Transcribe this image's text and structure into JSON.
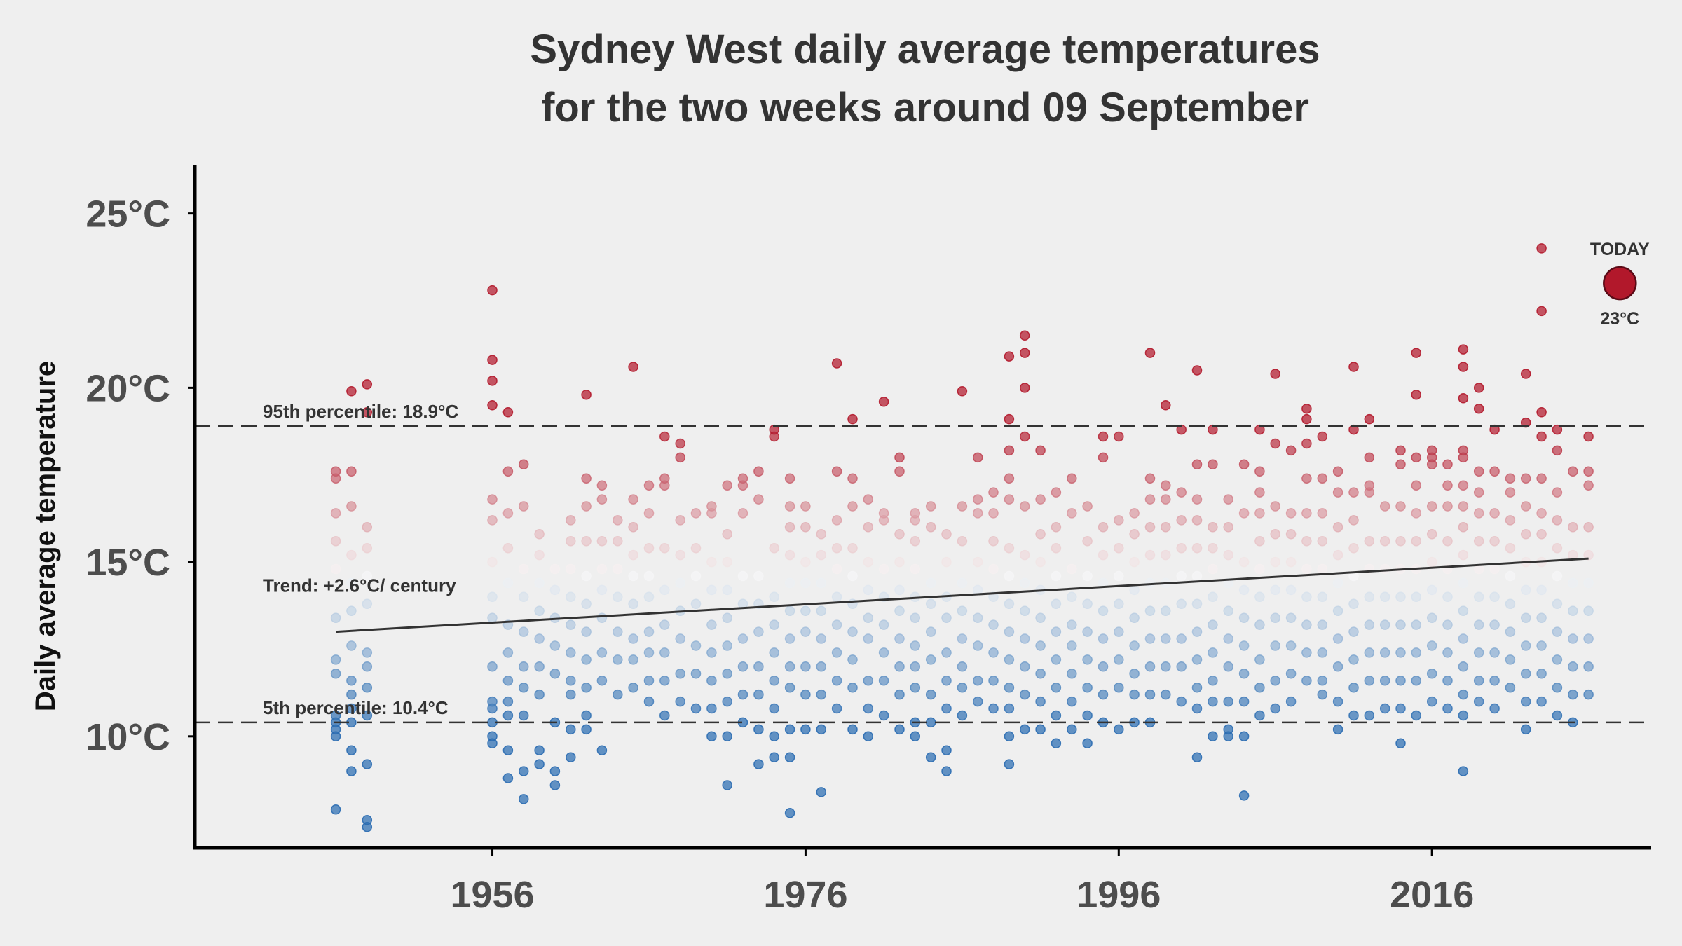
{
  "chart_data": {
    "type": "scatter",
    "title": [
      "Sydney West daily average temperatures",
      "for the two weeks around 09 September"
    ],
    "ylabel": "Daily average temperature",
    "xlabel": "",
    "xlim": [
      1937,
      2030
    ],
    "ylim": [
      6.8,
      26.4
    ],
    "xticks": [
      1956,
      1976,
      1996,
      2016
    ],
    "xtick_labels": [
      "1956",
      "1976",
      "1996",
      "2016"
    ],
    "yticks": [
      10,
      15,
      20,
      25
    ],
    "ytick_labels": [
      "10°C",
      "15°C",
      "20°C",
      "25°C"
    ],
    "grid": false,
    "colormap": {
      "cold": "#2a6cb1",
      "mid": "#f7f7f7",
      "hot": "#b2182b"
    },
    "percentiles": [
      {
        "name": "95th",
        "value": 18.9,
        "label": "95th percentile: 18.9°C"
      },
      {
        "name": "5th",
        "value": 10.4,
        "label": "5th percentile: 10.4°C"
      }
    ],
    "trend": {
      "label": "Trend: +2.6°C/ century",
      "start": [
        1946,
        13.0
      ],
      "end": [
        2026,
        15.1
      ]
    },
    "today": {
      "year": 2028,
      "value": 23,
      "label_top": "TODAY",
      "label_bottom": "23°C",
      "color": "#b2182b"
    },
    "years": [
      1946,
      1947,
      1948,
      1956,
      1957,
      1958,
      1959,
      1960,
      1961,
      1962,
      1963,
      1964,
      1965,
      1966,
      1967,
      1968,
      1969,
      1970,
      1971,
      1972,
      1973,
      1974,
      1975,
      1976,
      1977,
      1978,
      1979,
      1980,
      1981,
      1982,
      1983,
      1984,
      1985,
      1986,
      1987,
      1988,
      1989,
      1990,
      1991,
      1992,
      1993,
      1994,
      1995,
      1996,
      1997,
      1998,
      1999,
      2000,
      2001,
      2002,
      2003,
      2004,
      2005,
      2006,
      2007,
      2008,
      2009,
      2010,
      2011,
      2012,
      2013,
      2014,
      2015,
      2016,
      2017,
      2018,
      2019,
      2020,
      2021,
      2022,
      2023,
      2024,
      2025,
      2026
    ],
    "values": [
      [
        7.9,
        10.0,
        10.2,
        10.4,
        10.6,
        11.8,
        12.2,
        13.4,
        14.8,
        15.6,
        16.4,
        17.4,
        17.6
      ],
      [
        9.0,
        9.6,
        10.4,
        10.8,
        11.2,
        11.6,
        12.6,
        13.6,
        14.4,
        15.2,
        16.6,
        17.6,
        19.9
      ],
      [
        7.4,
        7.6,
        9.2,
        10.6,
        11.4,
        12.0,
        12.4,
        13.8,
        14.6,
        15.4,
        16.0,
        19.3,
        20.1
      ],
      [
        9.8,
        10.0,
        10.4,
        10.8,
        11.0,
        12.0,
        13.4,
        14.0,
        15.0,
        16.2,
        16.8,
        19.5,
        20.2,
        20.8,
        22.8
      ],
      [
        8.8,
        9.6,
        10.6,
        11.0,
        11.6,
        12.4,
        13.2,
        14.4,
        15.4,
        16.4,
        17.6,
        19.3
      ],
      [
        8.2,
        9.0,
        10.6,
        11.4,
        12.0,
        13.0,
        14.0,
        14.8,
        16.6,
        17.8
      ],
      [
        9.2,
        9.6,
        11.2,
        12.0,
        12.8,
        13.6,
        14.4,
        15.2,
        15.8
      ],
      [
        8.6,
        9.0,
        10.4,
        11.8,
        12.6,
        13.4,
        14.2,
        14.8
      ],
      [
        9.4,
        10.2,
        11.2,
        11.6,
        12.4,
        13.2,
        14.0,
        14.8,
        15.6,
        16.2
      ],
      [
        10.2,
        10.6,
        11.4,
        12.2,
        13.0,
        13.8,
        14.6,
        15.6,
        16.6,
        17.4,
        19.8
      ],
      [
        9.6,
        11.6,
        12.4,
        13.4,
        14.2,
        14.8,
        15.6,
        16.8,
        17.2
      ],
      [
        11.2,
        12.2,
        13.0,
        14.0,
        14.8,
        15.6,
        16.2
      ],
      [
        11.4,
        12.2,
        12.8,
        13.8,
        14.6,
        15.2,
        16.0,
        16.8,
        20.6
      ],
      [
        11.0,
        11.6,
        12.4,
        13.0,
        14.0,
        14.6,
        15.4,
        16.4,
        17.2
      ],
      [
        10.6,
        11.6,
        12.4,
        13.2,
        14.2,
        15.4,
        17.2,
        17.4,
        18.6
      ],
      [
        11.0,
        11.8,
        12.8,
        13.6,
        14.4,
        15.2,
        16.2,
        18.0,
        18.4
      ],
      [
        10.8,
        11.8,
        12.6,
        13.8,
        14.6,
        15.4,
        16.4
      ],
      [
        10.0,
        10.8,
        11.6,
        12.4,
        13.2,
        14.2,
        15.0,
        16.4,
        16.6
      ],
      [
        8.6,
        10.0,
        11.0,
        11.8,
        12.6,
        13.4,
        14.2,
        15.0,
        15.8,
        17.2
      ],
      [
        10.4,
        11.2,
        12.0,
        12.8,
        13.8,
        14.6,
        16.4,
        17.2,
        17.4
      ],
      [
        9.2,
        10.2,
        11.2,
        12.0,
        13.0,
        13.8,
        14.6,
        16.8,
        17.6
      ],
      [
        9.4,
        10.0,
        10.8,
        11.6,
        12.4,
        13.2,
        14.0,
        15.4,
        18.6,
        18.8
      ],
      [
        7.8,
        9.4,
        10.2,
        11.4,
        12.0,
        12.8,
        13.6,
        14.4,
        15.2,
        16.0,
        16.6,
        17.4
      ],
      [
        10.2,
        11.2,
        12.0,
        13.0,
        13.6,
        14.4,
        15.0,
        16.0,
        16.6
      ],
      [
        8.4,
        10.2,
        11.2,
        12.0,
        12.8,
        13.6,
        14.4,
        15.2,
        15.8
      ],
      [
        10.8,
        11.6,
        12.4,
        13.2,
        14.0,
        14.8,
        15.4,
        16.2,
        17.6,
        20.7
      ],
      [
        10.2,
        11.4,
        12.2,
        13.0,
        13.8,
        14.6,
        15.4,
        16.6,
        17.4,
        19.1
      ],
      [
        10.0,
        10.8,
        11.6,
        12.8,
        13.4,
        14.2,
        15.0,
        16.0,
        16.8
      ],
      [
        10.6,
        11.6,
        12.4,
        13.2,
        14.0,
        14.8,
        16.2,
        16.4,
        19.6
      ],
      [
        10.2,
        11.2,
        12.0,
        12.8,
        13.6,
        14.2,
        15.0,
        15.8,
        17.6,
        18.0
      ],
      [
        10.0,
        10.4,
        11.4,
        12.0,
        12.6,
        13.4,
        14.0,
        14.8,
        15.6,
        16.2,
        16.4
      ],
      [
        9.4,
        10.4,
        11.2,
        12.2,
        13.0,
        13.8,
        14.4,
        16.0,
        16.6
      ],
      [
        9.0,
        9.6,
        10.8,
        11.6,
        12.4,
        13.4,
        14.0,
        15.0,
        15.8
      ],
      [
        10.6,
        11.4,
        12.0,
        12.8,
        13.6,
        14.4,
        15.6,
        16.6,
        19.9
      ],
      [
        11.0,
        11.6,
        12.6,
        13.4,
        14.2,
        15.0,
        16.4,
        16.8,
        18.0
      ],
      [
        10.8,
        11.6,
        12.4,
        13.2,
        14.0,
        14.8,
        15.6,
        16.4,
        17.0
      ],
      [
        9.2,
        10.0,
        10.8,
        11.4,
        12.2,
        13.0,
        13.8,
        14.6,
        15.4,
        16.8,
        17.4,
        18.2,
        19.1,
        20.9
      ],
      [
        10.2,
        11.2,
        12.0,
        12.8,
        13.6,
        14.4,
        15.2,
        16.6,
        18.6,
        20.0,
        21.0,
        21.5
      ],
      [
        10.2,
        11.0,
        11.8,
        12.6,
        13.4,
        14.2,
        15.0,
        15.8,
        16.8,
        18.2
      ],
      [
        9.8,
        10.6,
        11.4,
        12.2,
        13.0,
        13.8,
        14.6,
        15.4,
        16.0,
        17.0
      ],
      [
        10.2,
        11.0,
        11.8,
        12.6,
        13.2,
        14.0,
        14.8,
        16.4,
        17.4
      ],
      [
        9.8,
        10.6,
        11.4,
        12.2,
        13.0,
        13.8,
        14.6,
        15.6,
        16.6
      ],
      [
        10.4,
        11.2,
        12.0,
        12.8,
        13.6,
        14.4,
        15.2,
        16.0,
        18.0,
        18.6
      ],
      [
        10.2,
        11.4,
        12.2,
        13.0,
        13.8,
        14.6,
        15.4,
        16.2,
        18.6
      ],
      [
        10.4,
        11.2,
        11.8,
        12.6,
        13.4,
        14.2,
        15.0,
        15.8,
        16.4
      ],
      [
        10.4,
        11.2,
        12.0,
        12.8,
        13.6,
        14.4,
        15.2,
        16.0,
        16.8,
        17.4,
        21.0
      ],
      [
        11.2,
        12.0,
        12.8,
        13.6,
        14.4,
        15.2,
        16.0,
        16.8,
        17.2,
        19.5
      ],
      [
        11.0,
        12.0,
        12.8,
        13.8,
        14.6,
        15.4,
        16.2,
        17.0,
        18.8
      ],
      [
        9.4,
        10.8,
        11.4,
        12.2,
        13.0,
        13.8,
        14.6,
        15.4,
        16.2,
        16.8,
        17.8,
        20.5
      ],
      [
        10.0,
        11.0,
        11.6,
        12.4,
        13.2,
        14.0,
        14.8,
        15.4,
        16.0,
        17.8,
        18.8
      ],
      [
        10.0,
        10.2,
        11.0,
        12.0,
        12.8,
        13.6,
        14.4,
        15.2,
        16.0,
        16.8
      ],
      [
        8.3,
        10.0,
        11.0,
        11.8,
        12.6,
        13.4,
        14.2,
        15.0,
        16.4,
        17.8
      ],
      [
        10.6,
        11.4,
        12.2,
        13.2,
        14.0,
        14.8,
        15.6,
        16.4,
        17.0,
        17.6,
        18.8
      ],
      [
        10.8,
        11.6,
        12.6,
        13.4,
        14.2,
        15.0,
        15.8,
        16.6,
        18.4,
        20.4
      ],
      [
        11.0,
        11.8,
        12.6,
        13.4,
        14.2,
        15.0,
        15.8,
        16.4,
        18.2
      ],
      [
        11.6,
        12.4,
        13.2,
        14.0,
        14.8,
        15.6,
        16.4,
        17.4,
        18.4,
        19.1,
        19.4
      ],
      [
        11.2,
        11.6,
        12.4,
        13.2,
        14.0,
        14.8,
        15.6,
        16.4,
        17.4,
        18.6
      ],
      [
        10.2,
        11.0,
        12.0,
        12.8,
        13.6,
        14.4,
        15.2,
        16.0,
        17.0,
        17.6
      ],
      [
        10.6,
        11.4,
        12.2,
        13.0,
        13.8,
        14.6,
        15.4,
        16.2,
        17.0,
        18.8,
        20.6
      ],
      [
        10.6,
        11.6,
        12.4,
        13.2,
        14.0,
        14.8,
        15.6,
        17.0,
        17.2,
        18.0,
        19.1
      ],
      [
        10.8,
        11.6,
        12.4,
        13.2,
        14.0,
        14.8,
        15.6,
        16.6
      ],
      [
        9.8,
        10.8,
        11.6,
        12.4,
        13.2,
        14.0,
        14.8,
        15.6,
        16.6,
        17.8,
        18.2
      ],
      [
        10.6,
        11.6,
        12.4,
        13.2,
        14.0,
        14.8,
        15.6,
        16.4,
        17.2,
        18.0,
        19.8,
        21.0
      ],
      [
        11.0,
        11.8,
        12.6,
        13.4,
        14.2,
        15.0,
        15.8,
        16.6,
        17.8,
        18.0,
        18.2
      ],
      [
        10.8,
        11.6,
        12.4,
        13.2,
        14.0,
        14.8,
        15.6,
        16.6,
        17.2,
        17.8
      ],
      [
        9.0,
        10.6,
        11.2,
        12.0,
        12.8,
        13.6,
        14.4,
        15.2,
        16.0,
        16.6,
        17.2,
        18.0,
        18.2,
        19.7,
        20.6,
        21.1
      ],
      [
        11.0,
        11.6,
        12.4,
        13.2,
        14.0,
        14.8,
        15.6,
        16.4,
        17.0,
        17.6,
        19.4,
        20.0
      ],
      [
        10.8,
        11.6,
        12.4,
        13.2,
        14.0,
        14.8,
        15.6,
        16.4,
        17.6,
        18.8
      ],
      [
        11.4,
        12.2,
        13.0,
        13.8,
        14.6,
        15.4,
        16.2,
        17.0,
        17.4
      ],
      [
        10.2,
        11.0,
        11.8,
        12.6,
        13.4,
        14.2,
        15.0,
        15.8,
        16.6,
        17.4,
        19.0,
        20.4
      ],
      [
        11.0,
        11.8,
        12.6,
        13.4,
        14.2,
        15.0,
        15.8,
        16.4,
        17.4,
        18.6,
        19.3,
        22.2,
        24.0
      ],
      [
        10.6,
        11.4,
        12.2,
        13.0,
        13.8,
        14.6,
        15.4,
        16.2,
        17.0,
        18.2,
        18.8
      ],
      [
        10.4,
        11.2,
        12.0,
        12.8,
        13.6,
        14.4,
        15.2,
        16.0,
        17.6
      ],
      [
        11.2,
        12.0,
        12.8,
        13.6,
        14.4,
        15.2,
        16.0,
        17.2,
        17.6,
        18.6
      ]
    ]
  }
}
